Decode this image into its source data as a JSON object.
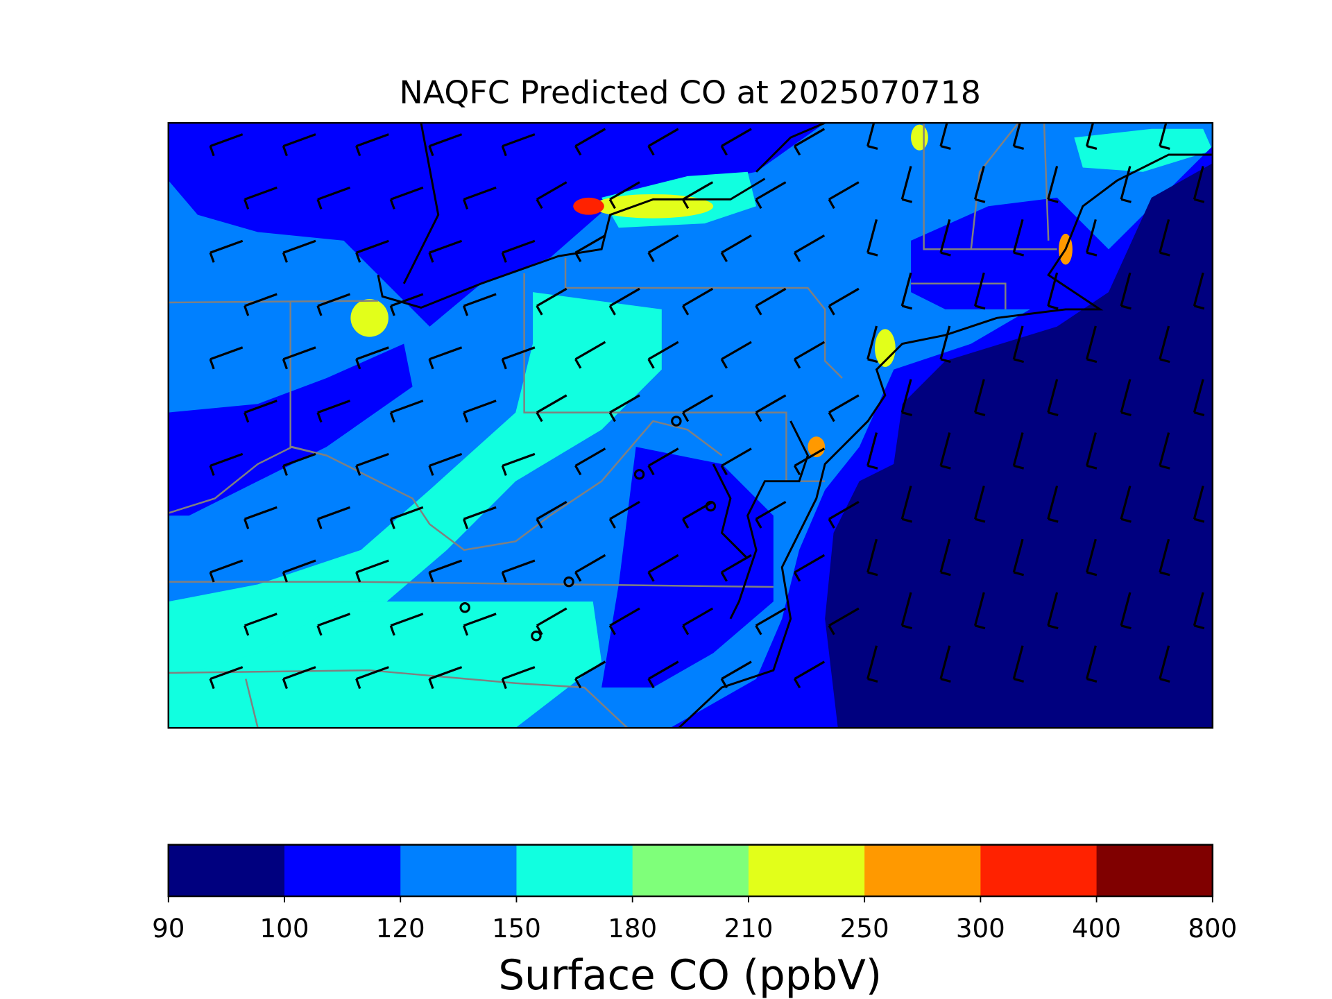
{
  "title": "NAQFC Predicted CO at 2025070718",
  "colorbar": {
    "levels": [
      90,
      100,
      120,
      150,
      180,
      210,
      250,
      300,
      400,
      800
    ],
    "colors": [
      "#00007f",
      "#0000ff",
      "#0080ff",
      "#11ffe0",
      "#7fff7a",
      "#e2ff1a",
      "#ff9900",
      "#ff2200",
      "#800000"
    ],
    "label": "Surface CO (ppbV)"
  }
}
